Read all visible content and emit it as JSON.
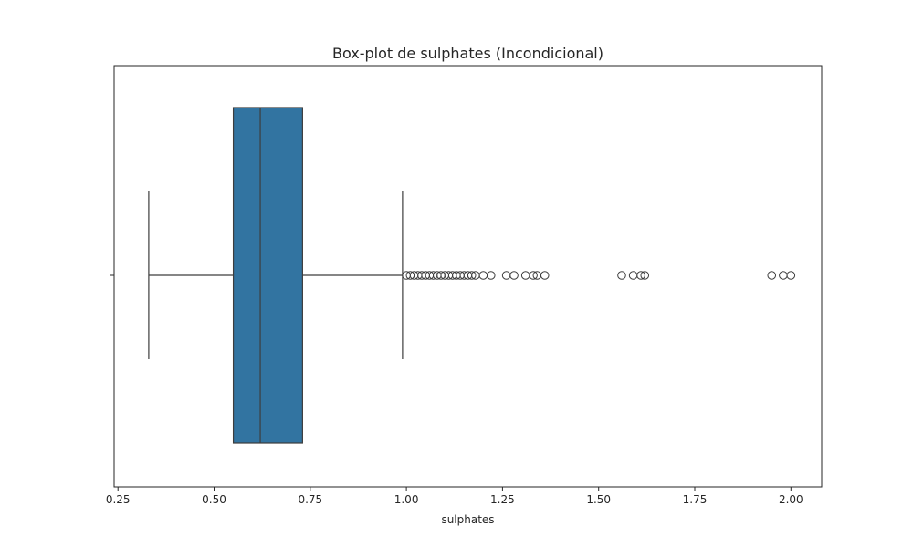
{
  "chart_data": {
    "type": "box",
    "orientation": "horizontal",
    "title": "Box-plot de sulphates (Incondicional)",
    "xlabel": "sulphates",
    "ylabel": "",
    "xlim": [
      0.24,
      2.08
    ],
    "xticks": [
      0.25,
      0.5,
      0.75,
      1.0,
      1.25,
      1.5,
      1.75,
      2.0
    ],
    "xtick_labels": [
      "0.25",
      "0.50",
      "0.75",
      "1.00",
      "1.25",
      "1.50",
      "1.75",
      "2.00"
    ],
    "grid": false,
    "legend": "none",
    "box": {
      "whisker_low": 0.33,
      "q1": 0.55,
      "median": 0.62,
      "q3": 0.73,
      "whisker_high": 0.99
    },
    "outliers": [
      1.0,
      1.01,
      1.02,
      1.03,
      1.04,
      1.05,
      1.06,
      1.07,
      1.08,
      1.09,
      1.1,
      1.11,
      1.12,
      1.13,
      1.14,
      1.15,
      1.16,
      1.17,
      1.18,
      1.2,
      1.22,
      1.26,
      1.28,
      1.31,
      1.33,
      1.34,
      1.36,
      1.56,
      1.59,
      1.61,
      1.62,
      1.95,
      1.98,
      2.0
    ],
    "colors": {
      "box_fill": "#3274a1",
      "line": "#3d3d3d",
      "axes": "#262626"
    }
  }
}
